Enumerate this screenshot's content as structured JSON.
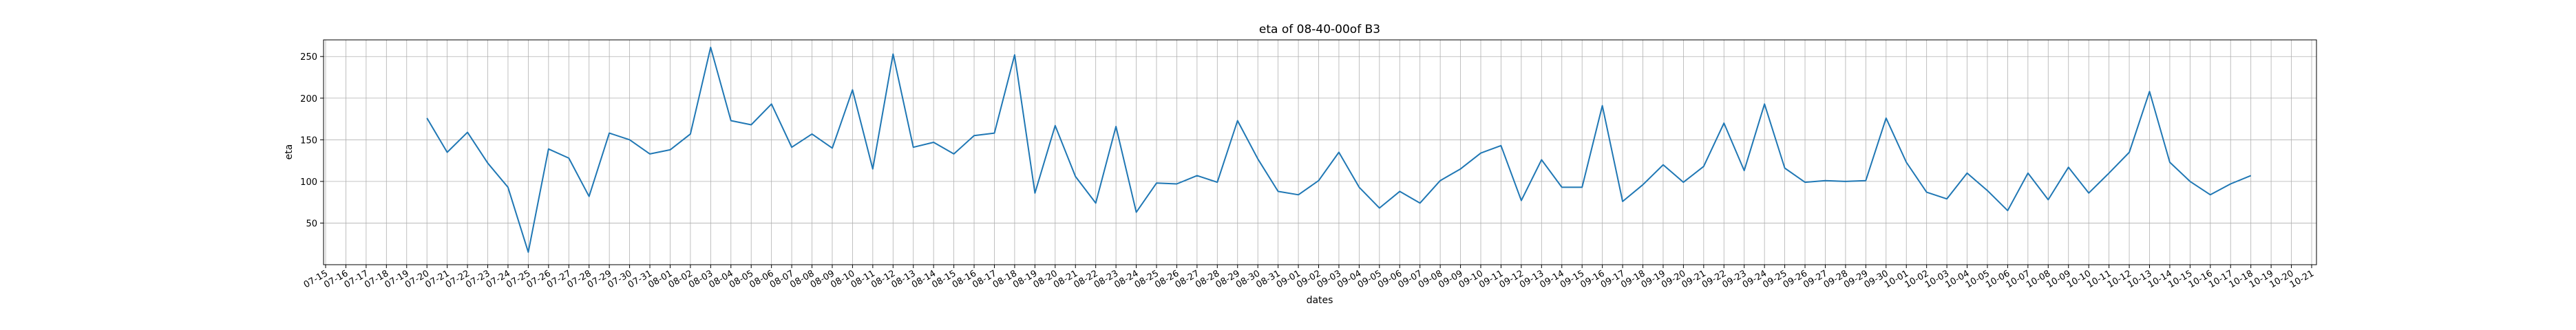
{
  "chart_data": {
    "type": "line",
    "title": "eta of 08-40-00of B3",
    "xlabel": "dates",
    "ylabel": "eta",
    "grid": true,
    "ylim": [
      0,
      270
    ],
    "yticks": [
      50,
      100,
      150,
      200,
      250
    ],
    "x_tick_labels": [
      "07-15",
      "07-16",
      "07-17",
      "07-18",
      "07-19",
      "07-20",
      "07-21",
      "07-22",
      "07-23",
      "07-24",
      "07-25",
      "07-26",
      "07-27",
      "07-28",
      "07-29",
      "07-30",
      "07-31",
      "08-01",
      "08-02",
      "08-03",
      "08-04",
      "08-05",
      "08-06",
      "08-07",
      "08-08",
      "08-09",
      "08-10",
      "08-11",
      "08-12",
      "08-13",
      "08-14",
      "08-15",
      "08-16",
      "08-17",
      "08-18",
      "08-19",
      "08-20",
      "08-21",
      "08-22",
      "08-23",
      "08-24",
      "08-25",
      "08-26",
      "08-27",
      "08-28",
      "08-29",
      "08-30",
      "08-31",
      "09-01",
      "09-02",
      "09-03",
      "09-04",
      "09-05",
      "09-06",
      "09-07",
      "09-08",
      "09-09",
      "09-10",
      "09-11",
      "09-12",
      "09-13",
      "09-14",
      "09-15",
      "09-16",
      "09-17",
      "09-18",
      "09-19",
      "09-20",
      "09-21",
      "09-22",
      "09-23",
      "09-24",
      "09-25",
      "09-26",
      "09-27",
      "09-28",
      "09-29",
      "09-30",
      "10-01",
      "10-02",
      "10-03",
      "10-04",
      "10-05",
      "10-06",
      "10-07",
      "10-08",
      "10-09",
      "10-10",
      "10-11",
      "10-12",
      "10-13",
      "10-14",
      "10-15",
      "10-16",
      "10-17",
      "10-18",
      "10-19",
      "10-20",
      "10-21"
    ],
    "series": [
      {
        "color": "#1f77b4",
        "x": [
          "07-20",
          "07-21",
          "07-22",
          "07-23",
          "07-24",
          "07-25",
          "07-26",
          "07-27",
          "07-28",
          "07-29",
          "07-30",
          "07-31",
          "08-01",
          "08-02",
          "08-03",
          "08-04",
          "08-05",
          "08-06",
          "08-07",
          "08-08",
          "08-09",
          "08-10",
          "08-11",
          "08-12",
          "08-13",
          "08-14",
          "08-15",
          "08-16",
          "08-17",
          "08-18",
          "08-19",
          "08-20",
          "08-21",
          "08-22",
          "08-23",
          "08-24",
          "08-25",
          "08-26",
          "08-27",
          "08-28",
          "08-29",
          "08-30",
          "08-31",
          "09-01",
          "09-02",
          "09-03",
          "09-04",
          "09-05",
          "09-06",
          "09-07",
          "09-08",
          "09-09",
          "09-10",
          "09-11",
          "09-12",
          "09-13",
          "09-14",
          "09-15",
          "09-16",
          "09-17",
          "09-18",
          "09-19",
          "09-20",
          "09-21",
          "09-22",
          "09-23",
          "09-24",
          "09-25",
          "09-26",
          "09-27",
          "09-28",
          "09-29",
          "09-30",
          "10-01",
          "10-02",
          "10-03",
          "10-04",
          "10-05",
          "10-06",
          "10-07",
          "10-08",
          "10-09",
          "10-10",
          "10-11",
          "10-12",
          "10-13",
          "10-14",
          "10-15",
          "10-16",
          "10-17",
          "10-18"
        ],
        "values": [
          176,
          135,
          159,
          122,
          93,
          15,
          139,
          128,
          82,
          158,
          150,
          133,
          138,
          157,
          261,
          173,
          168,
          193,
          141,
          157,
          140,
          210,
          115,
          253,
          141,
          147,
          133,
          155,
          158,
          252,
          86,
          167,
          106,
          74,
          166,
          63,
          98,
          97,
          107,
          99,
          173,
          127,
          88,
          84,
          101,
          135,
          93,
          68,
          88,
          74,
          101,
          115,
          134,
          143,
          77,
          126,
          93,
          93,
          191,
          76,
          96,
          120,
          99,
          118,
          170,
          113,
          193,
          116,
          99,
          101,
          100,
          101,
          176,
          123,
          87,
          79,
          110,
          89,
          65,
          110,
          78,
          117,
          86,
          110,
          135,
          208,
          123,
          100,
          84,
          97,
          107
        ]
      }
    ]
  }
}
